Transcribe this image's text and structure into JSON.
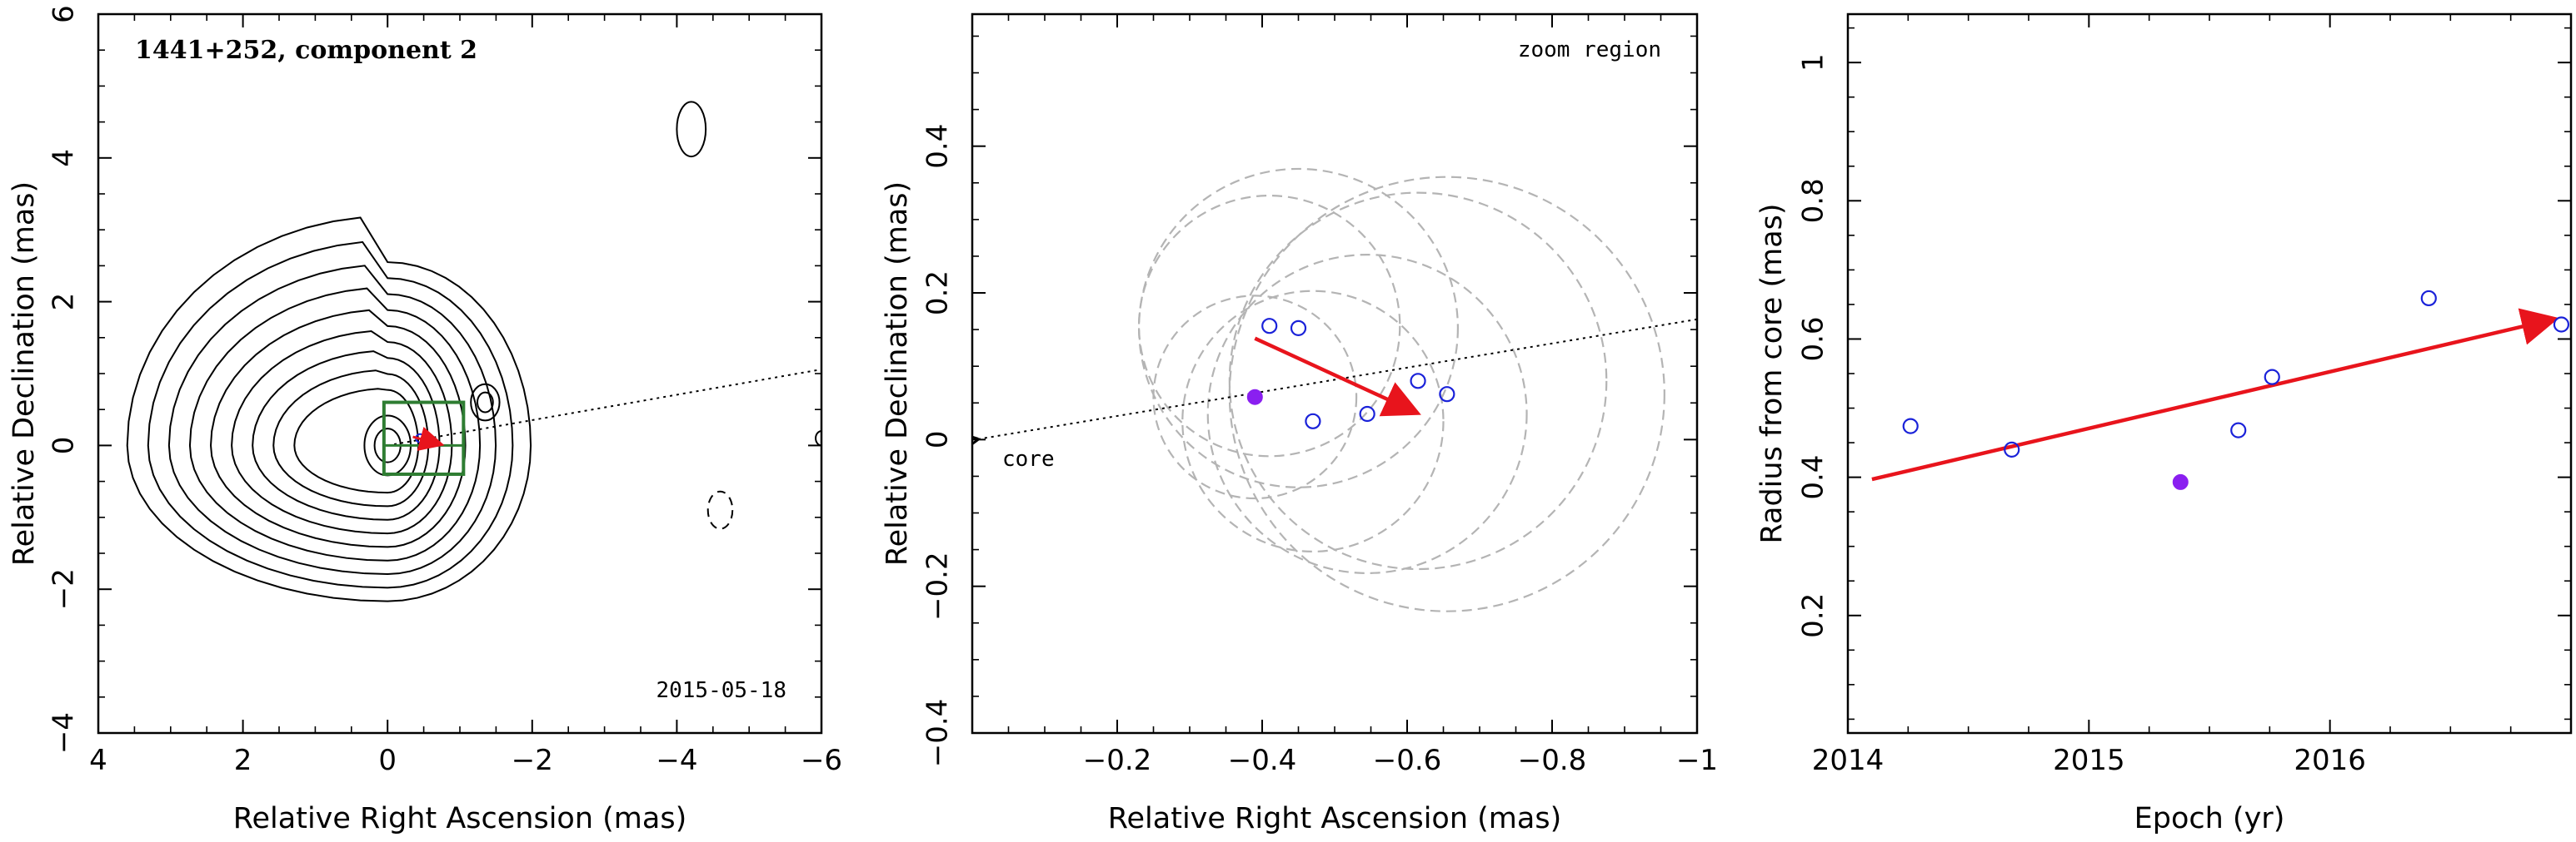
{
  "chart_data": [
    {
      "type": "contour",
      "title": "1441+252, component 2",
      "date": "2015-05-18",
      "xlabel": "Relative Right Ascension (mas)",
      "ylabel": "Relative Declination (mas)",
      "xlim": [
        4,
        -6
      ],
      "ylim": [
        -4,
        6
      ],
      "xticks": [
        4,
        2,
        0,
        -2,
        -4,
        -6
      ],
      "yticks": [
        -4,
        -2,
        0,
        2,
        4,
        6
      ],
      "xtick_labels": [
        "4",
        "2",
        "0",
        "−2",
        "−4",
        "−6"
      ],
      "ytick_labels": [
        "−4",
        "−2",
        "0",
        "2",
        "4",
        "6"
      ],
      "contour_levels": 9,
      "core_peak": [
        0,
        0
      ],
      "secondary_peak": [
        -1.35,
        0.6
      ],
      "zoom_box": {
        "x": [
          0.05,
          -1.05
        ],
        "y": [
          -0.4,
          0.6
        ]
      },
      "jet_axis_angle_deg": 10,
      "colors": {
        "contours": "#000000",
        "zoom_box": "#2e7d32",
        "arrow": "#e8141c",
        "points": "#1a22d9"
      }
    },
    {
      "type": "scatter",
      "label_zoom": "zoom region",
      "label_core": "core",
      "xlabel": "Relative Right Ascension (mas)",
      "ylabel": "Relative Declination (mas)",
      "xlim": [
        0,
        -1.0
      ],
      "ylim": [
        -0.4,
        0.58
      ],
      "xticks": [
        -0.2,
        -0.4,
        -0.6,
        -0.8,
        -1.0
      ],
      "yticks": [
        -0.4,
        -0.2,
        0,
        0.2,
        0.4
      ],
      "xtick_labels": [
        "−0.2",
        "−0.4",
        "−0.6",
        "−0.8",
        "−1"
      ],
      "ytick_labels": [
        "−0.4",
        "−0.2",
        "0",
        "0.2",
        "0.4"
      ],
      "points_open": [
        {
          "x": -0.41,
          "y": 0.155
        },
        {
          "x": -0.45,
          "y": 0.152
        },
        {
          "x": -0.47,
          "y": 0.025
        },
        {
          "x": -0.545,
          "y": 0.035
        },
        {
          "x": -0.615,
          "y": 0.08
        },
        {
          "x": -0.655,
          "y": 0.062
        }
      ],
      "point_filled": {
        "x": -0.39,
        "y": 0.058
      },
      "error_circles": [
        {
          "x": -0.41,
          "y": 0.155,
          "r": 0.18
        },
        {
          "x": -0.45,
          "y": 0.152,
          "r": 0.22
        },
        {
          "x": -0.47,
          "y": 0.025,
          "r": 0.18
        },
        {
          "x": -0.545,
          "y": 0.035,
          "r": 0.22
        },
        {
          "x": -0.615,
          "y": 0.08,
          "r": 0.26
        },
        {
          "x": -0.655,
          "y": 0.062,
          "r": 0.3
        },
        {
          "x": -0.39,
          "y": 0.058,
          "r": 0.14
        }
      ],
      "velocity_arrow": {
        "x1": -0.39,
        "y1": 0.138,
        "x2": -0.61,
        "y2": 0.038
      },
      "jet_axis": {
        "x1": 0,
        "y1": 0,
        "x2": -1.0,
        "y2": 0.164
      },
      "colors": {
        "circles": "#b4b4b4",
        "open_points": "#1a22d9",
        "filled_point": "#8a1ff0",
        "arrow": "#e8141c"
      }
    },
    {
      "type": "scatter",
      "xlabel": "Epoch (yr)",
      "ylabel": "Radius from core (mas)",
      "xlim": [
        2014,
        2017
      ],
      "ylim": [
        0.03,
        1.07
      ],
      "xticks": [
        2014,
        2015,
        2016
      ],
      "yticks": [
        0.2,
        0.4,
        0.6,
        0.8,
        1
      ],
      "xtick_labels": [
        "2014",
        "2015",
        "2016"
      ],
      "ytick_labels": [
        "0.2",
        "0.4",
        "0.6",
        "0.8",
        "1"
      ],
      "points_open": [
        {
          "x": 2014.26,
          "y": 0.474
        },
        {
          "x": 2014.68,
          "y": 0.44
        },
        {
          "x": 2015.62,
          "y": 0.468
        },
        {
          "x": 2015.76,
          "y": 0.545
        },
        {
          "x": 2016.41,
          "y": 0.659
        },
        {
          "x": 2016.96,
          "y": 0.621
        }
      ],
      "point_filled": {
        "x": 2015.38,
        "y": 0.393
      },
      "fit_arrow": {
        "x1": 2014.1,
        "y1": 0.397,
        "x2": 2016.92,
        "y2": 0.628
      },
      "colors": {
        "open_points": "#1a22d9",
        "filled_point": "#8a1ff0",
        "arrow": "#e8141c"
      }
    }
  ]
}
